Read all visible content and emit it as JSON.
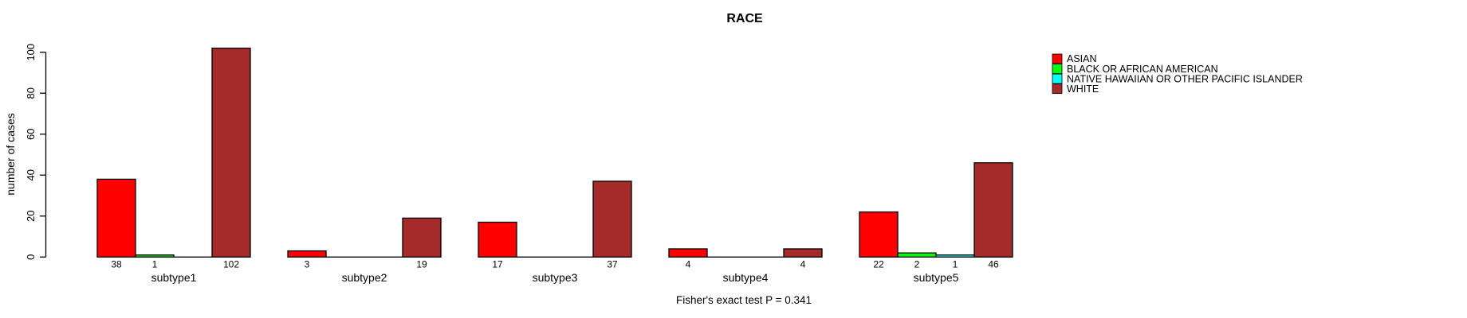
{
  "chart_data": {
    "type": "bar",
    "title": "RACE",
    "ylabel": "number of cases",
    "xlabel": "",
    "categories": [
      "subtype1",
      "subtype2",
      "subtype3",
      "subtype4",
      "subtype5"
    ],
    "series": [
      {
        "name": "ASIAN",
        "color": "#FF0000",
        "values": [
          38,
          3,
          17,
          4,
          22
        ]
      },
      {
        "name": "BLACK OR AFRICAN AMERICAN",
        "color": "#00FF00",
        "values": [
          1,
          0,
          0,
          0,
          2
        ]
      },
      {
        "name": "NATIVE HAWAIIAN OR OTHER PACIFIC ISLANDER",
        "color": "#00FFFF",
        "values": [
          0,
          0,
          0,
          0,
          1
        ]
      },
      {
        "name": "WHITE",
        "color": "#A52A2A",
        "values": [
          102,
          19,
          37,
          4,
          46
        ]
      }
    ],
    "yticks": [
      0,
      20,
      40,
      60,
      80,
      100
    ],
    "ylim": [
      0,
      102
    ],
    "grid": false,
    "bar_border_color": "#000000",
    "value_labels_shown": true,
    "zero_bars_drawn_as_baseline": true,
    "legend_position": "top-right-inside",
    "annotation": "Fisher's exact test P = 0.341"
  }
}
